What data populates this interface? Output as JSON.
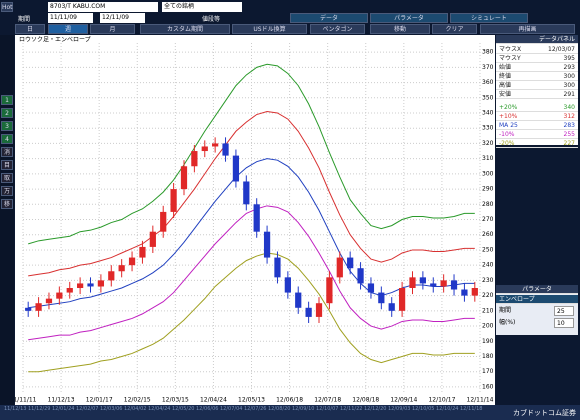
{
  "toolbar": {
    "hot": "Hot",
    "symbol": "8703/T KABU.COM",
    "universe": "全ての銘柄",
    "period_label": "期間",
    "from": "11/11/09",
    "to": "12/11/09",
    "price": "値段等",
    "tabs": [
      "データ",
      "パラメータ",
      "シミュレート"
    ],
    "buttons": [
      "日",
      "週",
      "月",
      "カスタム期間",
      "USドル換算",
      "ペンタゴン",
      "移動",
      "クリア",
      "再描画"
    ]
  },
  "sidebar": [
    "1",
    "2",
    "3",
    "4",
    "消",
    "目",
    "取",
    "万",
    "移"
  ],
  "chart_data": {
    "type": "candlestick",
    "title": "ロウソク足・エンベロープ",
    "open": [
      212,
      210,
      215,
      218,
      222,
      225,
      228,
      226,
      230,
      236,
      240,
      245,
      252,
      262,
      275,
      290,
      305,
      315,
      318,
      320,
      312,
      295,
      280,
      262,
      245,
      232,
      222,
      212,
      206,
      215,
      232,
      245,
      238,
      228,
      222,
      215,
      210,
      225,
      232,
      228,
      226,
      230,
      224,
      220
    ],
    "high": [
      216,
      219,
      222,
      226,
      229,
      232,
      232,
      234,
      240,
      244,
      249,
      256,
      266,
      279,
      294,
      309,
      319,
      322,
      324,
      324,
      316,
      299,
      284,
      266,
      249,
      236,
      226,
      216,
      219,
      236,
      249,
      249,
      242,
      232,
      226,
      219,
      229,
      236,
      236,
      232,
      234,
      234,
      228,
      229
    ],
    "low": [
      206,
      206,
      211,
      214,
      218,
      221,
      222,
      222,
      226,
      232,
      236,
      241,
      248,
      258,
      271,
      286,
      301,
      311,
      314,
      308,
      291,
      276,
      258,
      241,
      228,
      218,
      208,
      202,
      202,
      211,
      228,
      234,
      224,
      218,
      211,
      206,
      206,
      221,
      224,
      222,
      222,
      220,
      216,
      216
    ],
    "close": [
      210,
      215,
      218,
      222,
      225,
      228,
      226,
      230,
      236,
      240,
      245,
      252,
      262,
      275,
      290,
      305,
      315,
      318,
      320,
      312,
      295,
      280,
      262,
      245,
      232,
      222,
      212,
      206,
      215,
      232,
      245,
      238,
      228,
      222,
      215,
      210,
      225,
      232,
      228,
      226,
      230,
      224,
      220,
      225
    ],
    "up_color": "#e02828",
    "down_color": "#2038c8",
    "series": [
      {
        "color": "#2a9a2a",
        "values": [
          254,
          256,
          257,
          258,
          259,
          262,
          263,
          265,
          268,
          270,
          274,
          277,
          282,
          288,
          296,
          306,
          317,
          328,
          338,
          348,
          358,
          365,
          370,
          372,
          371,
          366,
          358,
          346,
          331,
          314,
          298,
          283,
          274,
          266,
          264,
          266,
          270,
          272,
          272,
          271,
          271,
          272,
          274,
          274
        ]
      },
      {
        "color": "#d83030",
        "values": [
          233,
          234,
          235,
          237,
          238,
          240,
          241,
          243,
          245,
          248,
          251,
          254,
          259,
          264,
          272,
          281,
          290,
          300,
          310,
          319,
          328,
          334,
          339,
          341,
          340,
          336,
          328,
          317,
          304,
          288,
          273,
          260,
          251,
          244,
          242,
          244,
          248,
          250,
          250,
          249,
          249,
          250,
          251,
          251
        ]
      },
      {
        "color": "#2040c0",
        "values": [
          212,
          213,
          214,
          215,
          216,
          218,
          219,
          221,
          223,
          225,
          228,
          231,
          235,
          240,
          247,
          255,
          264,
          273,
          282,
          290,
          298,
          304,
          308,
          310,
          309,
          305,
          298,
          288,
          276,
          262,
          248,
          236,
          228,
          222,
          220,
          222,
          225,
          227,
          227,
          226,
          226,
          227,
          228,
          228
        ]
      },
      {
        "color": "#c020c0",
        "values": [
          191,
          192,
          193,
          194,
          194,
          196,
          197,
          199,
          201,
          203,
          205,
          208,
          212,
          216,
          222,
          230,
          238,
          246,
          254,
          261,
          268,
          274,
          277,
          279,
          278,
          275,
          268,
          259,
          248,
          236,
          223,
          212,
          205,
          200,
          198,
          200,
          203,
          204,
          204,
          203,
          203,
          204,
          205,
          205
        ]
      },
      {
        "color": "#a0a020",
        "values": [
          170,
          170,
          171,
          172,
          173,
          174,
          175,
          177,
          178,
          180,
          182,
          185,
          188,
          192,
          198,
          204,
          211,
          218,
          226,
          232,
          238,
          243,
          246,
          248,
          247,
          244,
          238,
          230,
          221,
          210,
          198,
          189,
          182,
          178,
          176,
          178,
          180,
          182,
          182,
          181,
          181,
          182,
          182,
          182
        ]
      }
    ],
    "ylim": [
      156,
      386
    ],
    "yticks": [
      160,
      170,
      180,
      190,
      200,
      210,
      220,
      230,
      240,
      250,
      260,
      270,
      280,
      290,
      300,
      310,
      320,
      330,
      340,
      350,
      360,
      370,
      380
    ],
    "xtick_labels": [
      "11/11/11",
      "11/12/13",
      "12/01/17",
      "12/02/15",
      "12/03/15",
      "12/04/24",
      "12/05/13",
      "12/06/18",
      "12/07/18",
      "12/08/18",
      "12/09/14",
      "12/10/17",
      "12/11/14"
    ],
    "grid": true
  },
  "data_panel": {
    "title": "データパネル",
    "rows": [
      {
        "label": "マウスX",
        "value": "12/03/07",
        "color": "#222"
      },
      {
        "label": "マウスY",
        "value": 395,
        "color": "#222"
      },
      {
        "label": "始値",
        "value": 293,
        "color": "#222"
      },
      {
        "label": "終値",
        "value": 300,
        "color": "#222"
      },
      {
        "label": "高値",
        "value": 300,
        "color": "#222"
      },
      {
        "label": "安値",
        "value": 291,
        "color": "#222"
      },
      {
        "label": "+20%",
        "value": 340,
        "color": "#2a9a2a"
      },
      {
        "label": "+10%",
        "value": 312,
        "color": "#d83030"
      },
      {
        "label": "MA 25",
        "value": 283,
        "color": "#2040c0"
      },
      {
        "label": "-10%",
        "value": 255,
        "color": "#c020c0"
      },
      {
        "label": "-20%",
        "value": 227,
        "color": "#a0a020"
      }
    ]
  },
  "param_panel": {
    "title": "パラメータ",
    "name": "エンベロープ",
    "rows": [
      {
        "label": "期間",
        "value": 25
      },
      {
        "label": "幅(%)",
        "value": 10
      }
    ]
  },
  "footer": {
    "dates": [
      "11/12/13",
      "11/12/29",
      "12/01/24",
      "12/02/07",
      "12/03/06",
      "12/04/02",
      "12/04/24",
      "12/05/20",
      "12/06/06",
      "12/07/04",
      "12/07/26",
      "12/08/20",
      "12/09/10",
      "12/10/07",
      "12/11/22",
      "12/12/20",
      "12/09/03",
      "12/10/05",
      "12/10/24",
      "12/11/18"
    ],
    "brand": "カブドットコム証券"
  }
}
